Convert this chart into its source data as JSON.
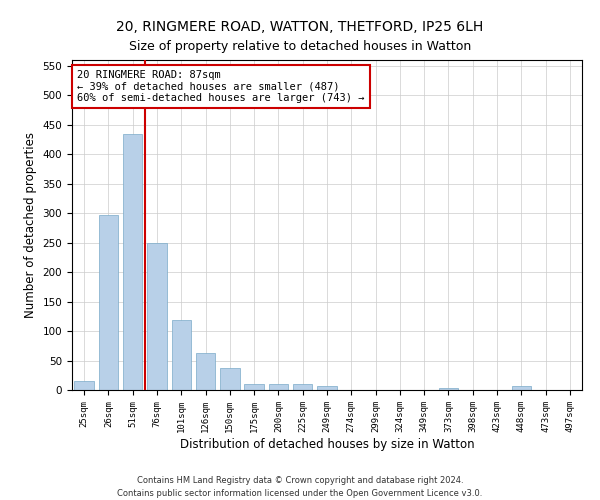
{
  "title1": "20, RINGMERE ROAD, WATTON, THETFORD, IP25 6LH",
  "title2": "Size of property relative to detached houses in Watton",
  "xlabel": "Distribution of detached houses by size in Watton",
  "ylabel": "Number of detached properties",
  "categories": [
    "25sqm",
    "26sqm",
    "51sqm",
    "76sqm",
    "101sqm",
    "126sqm",
    "150sqm",
    "175sqm",
    "200sqm",
    "225sqm",
    "249sqm",
    "274sqm",
    "299sqm",
    "324sqm",
    "349sqm",
    "373sqm",
    "398sqm",
    "423sqm",
    "448sqm",
    "473sqm",
    "497sqm"
  ],
  "values": [
    16,
    297,
    435,
    250,
    118,
    63,
    37,
    10,
    10,
    10,
    6,
    0,
    0,
    0,
    0,
    4,
    0,
    0,
    6,
    0,
    0
  ],
  "bar_color": "#b8d0e8",
  "bar_edge_color": "#7aaac8",
  "vline_color": "#cc0000",
  "annotation_text": "20 RINGMERE ROAD: 87sqm\n← 39% of detached houses are smaller (487)\n60% of semi-detached houses are larger (743) →",
  "annotation_box_color": "#ffffff",
  "annotation_box_edge": "#cc0000",
  "ylim": [
    0,
    560
  ],
  "yticks": [
    0,
    50,
    100,
    150,
    200,
    250,
    300,
    350,
    400,
    450,
    500,
    550
  ],
  "footer1": "Contains HM Land Registry data © Crown copyright and database right 2024.",
  "footer2": "Contains public sector information licensed under the Open Government Licence v3.0.",
  "bg_color": "#ffffff",
  "grid_color": "#cccccc",
  "title1_fontsize": 10,
  "title2_fontsize": 9,
  "xlabel_fontsize": 8.5,
  "ylabel_fontsize": 8.5
}
